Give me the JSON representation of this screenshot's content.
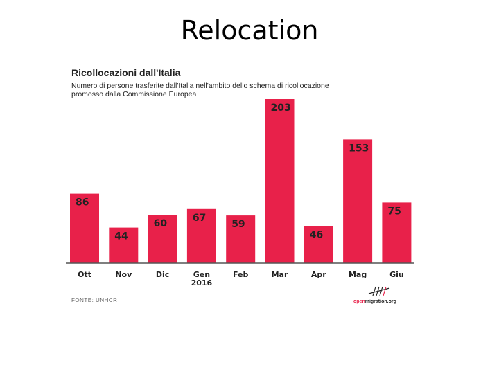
{
  "slide": {
    "title": "Relocation"
  },
  "chart_data": {
    "type": "bar",
    "title": "Ricollocazioni dall'Italia",
    "subtitle_lines": [
      "Numero di persone trasferite dall'Italia nell'ambito dello schema di ricollocazione",
      "promosso dalla Commissione Europea"
    ],
    "categories": [
      [
        "Ott"
      ],
      [
        "Nov"
      ],
      [
        "Dic"
      ],
      [
        "Gen",
        "2016"
      ],
      [
        "Feb"
      ],
      [
        "Mar"
      ],
      [
        "Apr"
      ],
      [
        "Mag"
      ],
      [
        "Giu"
      ]
    ],
    "values": [
      86,
      44,
      60,
      67,
      59,
      203,
      46,
      153,
      75
    ],
    "ylim": [
      0,
      203
    ],
    "grid": false,
    "bar_color": "#e8214a",
    "source": "FONTE: UNHCR",
    "brand": {
      "prefix": "open",
      "rest": "migration.org",
      "prefix_color": "#e8214a",
      "rest_color": "#222222"
    }
  }
}
